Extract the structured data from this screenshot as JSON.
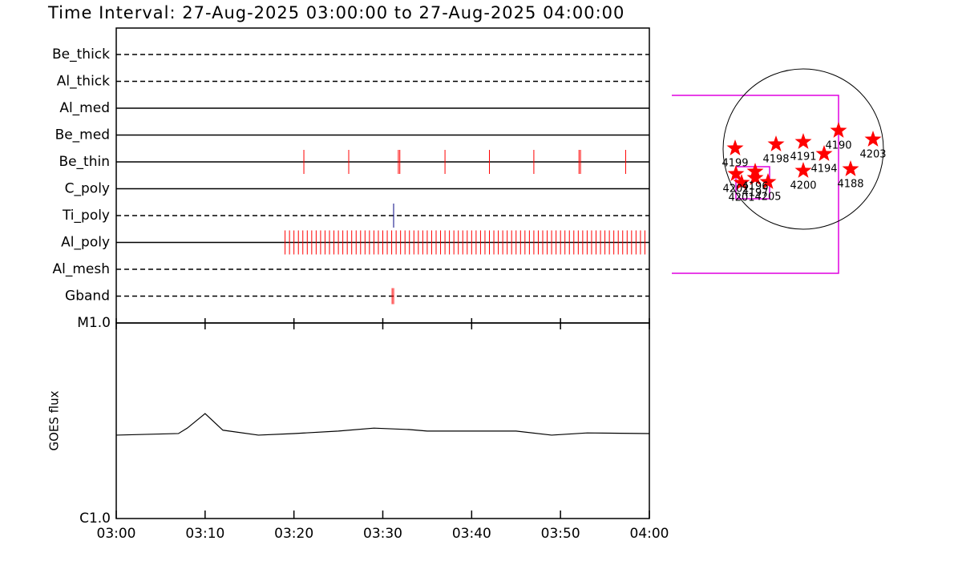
{
  "chart_data": [
    {
      "type": "timeline",
      "title": "Time Interval: 27-Aug-2025 03:00:00 to 27-Aug-2025 04:00:00",
      "xlim": [
        "03:00",
        "04:00"
      ],
      "rows": [
        {
          "name": "Be_thick",
          "style": "dashed",
          "color": "#ff0000",
          "events": []
        },
        {
          "name": "Al_thick",
          "style": "dashed",
          "color": "#ff0000",
          "events": []
        },
        {
          "name": "Al_med",
          "style": "solid",
          "color": "#ff0000",
          "events": []
        },
        {
          "name": "Be_med",
          "style": "solid",
          "color": "#ff0000",
          "events": []
        },
        {
          "name": "Be_thin",
          "style": "solid",
          "color": "#ff0000",
          "events": [
            "03:21:07",
            "03:26:10",
            "03:31:45",
            "03:31:55",
            "03:37:00",
            "03:42:00",
            "03:47:00",
            "03:52:05",
            "03:52:15",
            "03:57:20"
          ]
        },
        {
          "name": "C_poly",
          "style": "solid",
          "color": "#ff0000",
          "events": []
        },
        {
          "name": "Ti_poly",
          "style": "dashed",
          "color": "#000080",
          "events": [
            "03:31:13"
          ]
        },
        {
          "name": "Al_poly",
          "style": "solid",
          "color": "#ff0000",
          "events": [
            "03:19:00",
            "03:19:30",
            "03:20:00",
            "03:20:30",
            "03:21:00",
            "03:21:30",
            "03:22:00",
            "03:22:30",
            "03:23:00",
            "03:23:30",
            "03:24:00",
            "03:24:30",
            "03:25:00",
            "03:25:30",
            "03:26:00",
            "03:26:30",
            "03:27:00",
            "03:27:30",
            "03:28:00",
            "03:28:30",
            "03:29:00",
            "03:29:30",
            "03:30:00",
            "03:30:30",
            "03:31:00",
            "03:31:30",
            "03:32:00",
            "03:32:30",
            "03:33:00",
            "03:33:30",
            "03:34:00",
            "03:34:30",
            "03:35:00",
            "03:35:30",
            "03:36:00",
            "03:36:30",
            "03:37:00",
            "03:37:30",
            "03:38:00",
            "03:38:30",
            "03:39:00",
            "03:39:30",
            "03:40:00",
            "03:40:30",
            "03:41:00",
            "03:41:30",
            "03:42:00",
            "03:42:30",
            "03:43:00",
            "03:43:30",
            "03:44:00",
            "03:44:30",
            "03:45:00",
            "03:45:30",
            "03:46:00",
            "03:46:30",
            "03:47:00",
            "03:47:30",
            "03:48:00",
            "03:48:30",
            "03:49:00",
            "03:49:30",
            "03:50:00",
            "03:50:30",
            "03:51:00",
            "03:51:30",
            "03:52:00",
            "03:52:30",
            "03:53:00",
            "03:53:30",
            "03:54:00",
            "03:54:30",
            "03:55:00",
            "03:55:30",
            "03:56:00",
            "03:56:30",
            "03:57:00",
            "03:57:30",
            "03:58:00",
            "03:58:30",
            "03:59:00",
            "03:59:30"
          ]
        },
        {
          "name": "Al_mesh",
          "style": "dashed",
          "color": "#ff0000",
          "events": []
        },
        {
          "name": "Gband",
          "style": "dashed",
          "color": "#ff0000",
          "events": [
            "03:31:03",
            "03:31:13"
          ]
        }
      ]
    },
    {
      "type": "line",
      "ylabel": "GOES flux",
      "log_scale": true,
      "color": "#000000",
      "xlim": [
        "03:00",
        "04:00"
      ],
      "xticks": [
        "03:00",
        "03:10",
        "03:20",
        "03:30",
        "03:40",
        "03:50",
        "04:00"
      ],
      "ylim": [
        1e-06,
        1e-05
      ],
      "yticks": [
        {
          "value": 1e-06,
          "label": "C1.0"
        },
        {
          "value": 1e-05,
          "label": "M1.0"
        }
      ],
      "x": [
        "03:00",
        "03:07",
        "03:08",
        "03:10",
        "03:12",
        "03:16",
        "03:20",
        "03:25",
        "03:29",
        "03:33",
        "03:35",
        "03:45",
        "03:49",
        "03:53",
        "04:00"
      ],
      "values": [
        2.67e-06,
        2.72e-06,
        2.9e-06,
        3.44e-06,
        2.83e-06,
        2.67e-06,
        2.72e-06,
        2.8e-06,
        2.9e-06,
        2.85e-06,
        2.8e-06,
        2.8e-06,
        2.67e-06,
        2.74e-06,
        2.72e-06
      ]
    },
    {
      "type": "disk",
      "color": "#ff0000",
      "xlim": [
        -1,
        1
      ],
      "ylim": [
        -1,
        1
      ],
      "points": [
        {
          "label": "4199",
          "x": -0.85,
          "y": 0.01
        },
        {
          "label": "4198",
          "x": -0.34,
          "y": 0.06
        },
        {
          "label": "4191",
          "x": 0.0,
          "y": 0.09
        },
        {
          "label": "4190",
          "x": 0.44,
          "y": 0.23
        },
        {
          "label": "4203",
          "x": 0.87,
          "y": 0.12
        },
        {
          "label": "4194",
          "x": 0.26,
          "y": -0.06
        },
        {
          "label": "4200",
          "x": 0.0,
          "y": -0.27
        },
        {
          "label": "4188",
          "x": 0.59,
          "y": -0.25
        },
        {
          "label": "4202",
          "x": -0.84,
          "y": -0.31
        },
        {
          "label": "4196",
          "x": -0.6,
          "y": -0.28
        },
        {
          "label": "4201",
          "x": -0.77,
          "y": -0.42
        },
        {
          "label": "4197",
          "x": -0.6,
          "y": -0.36
        },
        {
          "label": "4205",
          "x": -0.44,
          "y": -0.41
        }
      ]
    }
  ]
}
